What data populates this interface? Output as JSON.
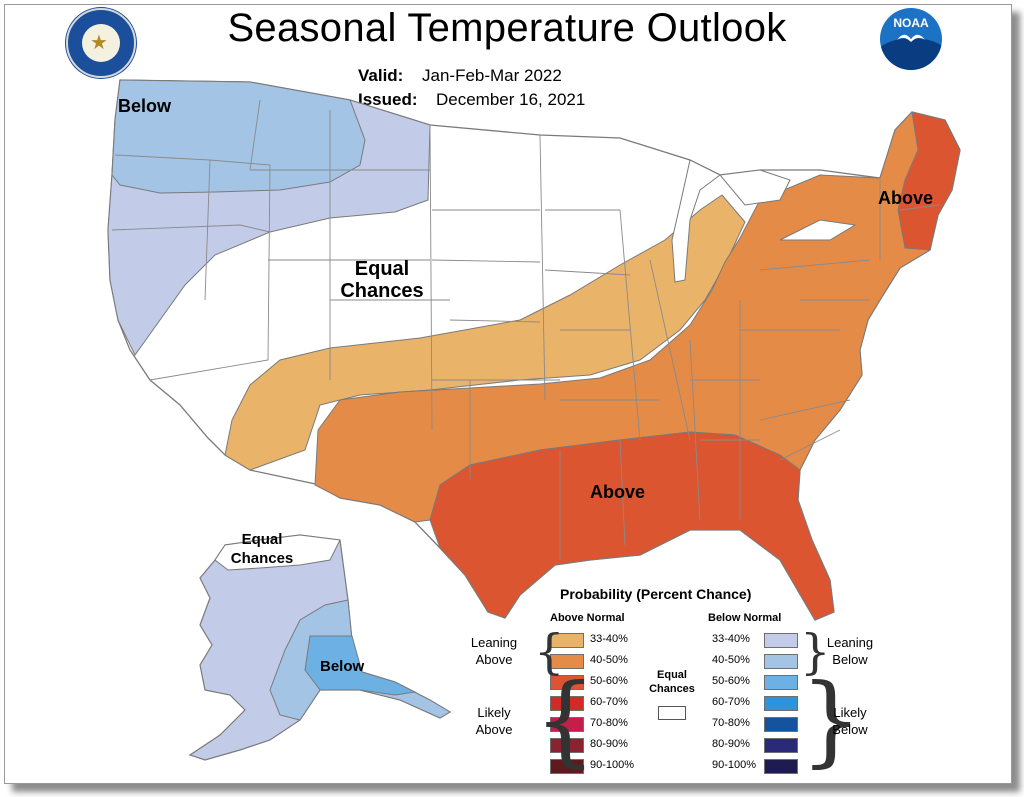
{
  "header": {
    "title": "Seasonal Temperature Outlook",
    "valid_label": "Valid:",
    "valid_value": "Jan-Feb-Mar 2022",
    "issued_label": "Issued:",
    "issued_value": "December 16, 2021"
  },
  "logos": {
    "noaa_text": "NOAA",
    "commerce_seal": "department-of-commerce-seal",
    "noaa_logo": "noaa-logo"
  },
  "map_labels": {
    "below_nw": "Below",
    "equal_chances": [
      "Equal",
      "Chances"
    ],
    "above_ne": "Above",
    "above_south": "Above",
    "ak_equal_chances": [
      "Equal",
      "Chances"
    ],
    "ak_below": "Below"
  },
  "colors": {
    "white": "#ffffff",
    "above_33_40": "#e9b46a",
    "above_40_50": "#e58b48",
    "above_50_60": "#db5530",
    "above_60_70": "#d02b26",
    "above_70_80": "#c21f4a",
    "above_80_90": "#8c2230",
    "above_90_100": "#5e1a1c",
    "below_33_40": "#c2cce8",
    "below_40_50": "#a4c4e6",
    "below_50_60": "#6cb0e4",
    "below_60_70": "#2f93da",
    "below_70_80": "#15539e",
    "below_80_90": "#2b2a78",
    "below_90_100": "#1d1b4f",
    "boundary": "#7a7a7a"
  },
  "legend": {
    "title": "Probability (Percent Chance)",
    "above_header": "Above Normal",
    "below_header": "Below Normal",
    "above_rows": [
      "33-40%",
      "40-50%",
      "50-60%",
      "60-70%",
      "70-80%",
      "80-90%",
      "90-100%"
    ],
    "below_rows": [
      "33-40%",
      "40-50%",
      "50-60%",
      "60-70%",
      "70-80%",
      "80-90%",
      "90-100%"
    ],
    "leaning_above": [
      "Leaning",
      "Above"
    ],
    "likely_above": [
      "Likely",
      "Above"
    ],
    "leaning_below": [
      "Leaning",
      "Below"
    ],
    "likely_below": [
      "Likely",
      "Below"
    ],
    "equal": [
      "Equal",
      "Chances"
    ]
  }
}
